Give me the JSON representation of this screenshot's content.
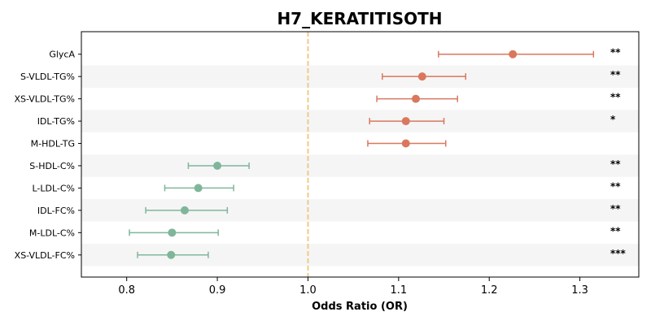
{
  "chart_data": {
    "type": "forest",
    "title": "H7_KERATITISOTH",
    "xlabel": "Odds Ratio (OR)",
    "xlim": [
      0.75,
      1.365
    ],
    "xticks": [
      0.8,
      0.9,
      1.0,
      1.1,
      1.2,
      1.3
    ],
    "xtick_labels": [
      "0.8",
      "0.9",
      "1.0",
      "1.1",
      "1.2",
      "1.3"
    ],
    "reference_line": 1.0,
    "grid": false,
    "colors": {
      "positive": "#d9785e",
      "negative": "#7fb69a",
      "reference": "#f2c98a",
      "band": "#f5f5f5"
    },
    "rows": [
      {
        "label": "GlycA",
        "or": 1.226,
        "lo": 1.144,
        "hi": 1.315,
        "sig": "**"
      },
      {
        "label": "S-VLDL-TG%",
        "or": 1.126,
        "lo": 1.082,
        "hi": 1.174,
        "sig": "**"
      },
      {
        "label": "XS-VLDL-TG%",
        "or": 1.119,
        "lo": 1.076,
        "hi": 1.165,
        "sig": "**"
      },
      {
        "label": "IDL-TG%",
        "or": 1.108,
        "lo": 1.068,
        "hi": 1.15,
        "sig": "*"
      },
      {
        "label": "M-HDL-TG",
        "or": 1.108,
        "lo": 1.066,
        "hi": 1.152,
        "sig": ""
      },
      {
        "label": "S-HDL-C%",
        "or": 0.9,
        "lo": 0.868,
        "hi": 0.935,
        "sig": "**"
      },
      {
        "label": "L-LDL-C%",
        "or": 0.879,
        "lo": 0.842,
        "hi": 0.918,
        "sig": "**"
      },
      {
        "label": "IDL-FC%",
        "or": 0.864,
        "lo": 0.821,
        "hi": 0.911,
        "sig": "**"
      },
      {
        "label": "M-LDL-C%",
        "or": 0.85,
        "lo": 0.803,
        "hi": 0.901,
        "sig": "**"
      },
      {
        "label": "XS-VLDL-FC%",
        "or": 0.849,
        "lo": 0.812,
        "hi": 0.89,
        "sig": "***"
      }
    ]
  }
}
